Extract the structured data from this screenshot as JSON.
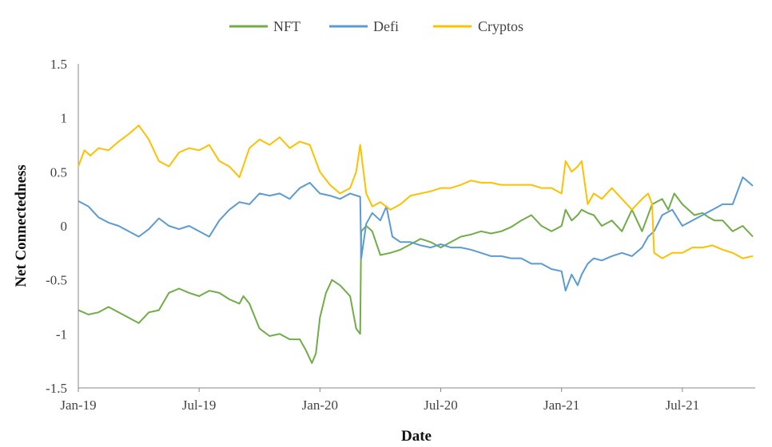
{
  "chart_data": {
    "type": "line",
    "title": "",
    "xlabel": "Date",
    "ylabel": "Net Connectedness",
    "ylim": [
      -1.5,
      1.5
    ],
    "y_ticks": [
      1.5,
      1,
      0.5,
      0,
      -0.5,
      -1,
      -1.5
    ],
    "y_tick_labels": [
      "1.5",
      "1",
      "0.5",
      "0",
      "-0.5",
      "-1",
      "-1.5"
    ],
    "x_range_months": [
      0,
      33.5
    ],
    "x_ticks": [
      0,
      6,
      12,
      18,
      24,
      30
    ],
    "x_tick_labels": [
      "Jan-19",
      "Jul-19",
      "Jan-20",
      "Jul-20",
      "Jan-21",
      "Jul-21"
    ],
    "grid": false,
    "legend_position": "top-center",
    "series": [
      {
        "name": "NFT",
        "color": "#70AD47",
        "x": [
          0,
          0.5,
          1,
          1.5,
          2,
          2.5,
          3,
          3.5,
          4,
          4.5,
          5,
          5.5,
          6,
          6.5,
          7,
          7.5,
          8,
          8.2,
          8.5,
          9,
          9.5,
          10,
          10.5,
          11,
          11.3,
          11.6,
          11.8,
          12,
          12.3,
          12.6,
          13,
          13.5,
          13.8,
          14,
          14.05,
          14.3,
          14.6,
          15,
          15.5,
          16,
          16.5,
          17,
          17.5,
          18,
          18.5,
          19,
          19.5,
          20,
          20.5,
          21,
          21.5,
          22,
          22.5,
          23,
          23.5,
          24,
          24.2,
          24.5,
          24.8,
          25,
          25.3,
          25.6,
          26,
          26.5,
          27,
          27.5,
          28,
          28.5,
          29,
          29.3,
          29.6,
          30,
          30.3,
          30.6,
          31,
          31.3,
          31.6,
          32,
          32.5,
          33,
          33.5
        ],
        "values": [
          -0.78,
          -0.82,
          -0.8,
          -0.75,
          -0.8,
          -0.85,
          -0.9,
          -0.8,
          -0.78,
          -0.62,
          -0.58,
          -0.62,
          -0.65,
          -0.6,
          -0.62,
          -0.68,
          -0.72,
          -0.65,
          -0.72,
          -0.95,
          -1.02,
          -1.0,
          -1.05,
          -1.05,
          -1.15,
          -1.27,
          -1.18,
          -0.85,
          -0.62,
          -0.5,
          -0.55,
          -0.65,
          -0.95,
          -1.0,
          -0.05,
          0.0,
          -0.05,
          -0.27,
          -0.25,
          -0.22,
          -0.17,
          -0.12,
          -0.15,
          -0.2,
          -0.15,
          -0.1,
          -0.08,
          -0.05,
          -0.07,
          -0.05,
          -0.01,
          0.05,
          0.1,
          0.0,
          -0.05,
          0.0,
          0.15,
          0.05,
          0.1,
          0.15,
          0.12,
          0.1,
          0.0,
          0.05,
          -0.05,
          0.15,
          -0.05,
          0.2,
          0.25,
          0.15,
          0.3,
          0.2,
          0.15,
          0.1,
          0.12,
          0.08,
          0.05,
          0.05,
          -0.05,
          0.0,
          -0.1
        ]
      },
      {
        "name": "Defi",
        "color": "#5B9BD5",
        "x": [
          0,
          0.5,
          1,
          1.5,
          2,
          2.5,
          3,
          3.5,
          4,
          4.5,
          5,
          5.5,
          6,
          6.5,
          7,
          7.5,
          8,
          8.5,
          9,
          9.5,
          10,
          10.5,
          11,
          11.5,
          12,
          12.5,
          13,
          13.5,
          14,
          14.05,
          14.3,
          14.6,
          15,
          15.3,
          15.6,
          16,
          16.5,
          17,
          17.5,
          18,
          18.5,
          19,
          19.5,
          20,
          20.5,
          21,
          21.5,
          22,
          22.5,
          23,
          23.5,
          24,
          24.2,
          24.5,
          24.8,
          25,
          25.3,
          25.6,
          26,
          26.5,
          27,
          27.5,
          28,
          28.3,
          28.6,
          29,
          29.5,
          30,
          30.5,
          31,
          31.5,
          32,
          32.5,
          33,
          33.2,
          33.5
        ],
        "values": [
          0.23,
          0.18,
          0.08,
          0.03,
          0.0,
          -0.05,
          -0.1,
          -0.03,
          0.07,
          0.0,
          -0.03,
          0.0,
          -0.05,
          -0.1,
          0.05,
          0.15,
          0.22,
          0.2,
          0.3,
          0.28,
          0.3,
          0.25,
          0.35,
          0.4,
          0.3,
          0.28,
          0.25,
          0.3,
          0.27,
          -0.3,
          0.02,
          0.12,
          0.05,
          0.18,
          -0.1,
          -0.15,
          -0.15,
          -0.18,
          -0.2,
          -0.17,
          -0.2,
          -0.2,
          -0.22,
          -0.25,
          -0.28,
          -0.28,
          -0.3,
          -0.3,
          -0.35,
          -0.35,
          -0.4,
          -0.42,
          -0.6,
          -0.45,
          -0.55,
          -0.45,
          -0.35,
          -0.3,
          -0.32,
          -0.28,
          -0.25,
          -0.28,
          -0.2,
          -0.1,
          -0.05,
          0.1,
          0.15,
          0.0,
          0.05,
          0.1,
          0.15,
          0.2,
          0.2,
          0.45,
          0.42,
          0.37
        ]
      },
      {
        "name": "Cryptos",
        "color": "#FFC000",
        "x": [
          0,
          0.3,
          0.6,
          1,
          1.5,
          2,
          2.5,
          3,
          3.5,
          4,
          4.5,
          5,
          5.5,
          6,
          6.5,
          7,
          7.5,
          8,
          8.5,
          9,
          9.5,
          10,
          10.5,
          11,
          11.5,
          12,
          12.5,
          13,
          13.5,
          13.8,
          14,
          14.1,
          14.3,
          14.6,
          15,
          15.5,
          16,
          16.5,
          17,
          17.5,
          18,
          18.5,
          19,
          19.5,
          20,
          20.5,
          21,
          21.5,
          22,
          22.5,
          23,
          23.5,
          24,
          24.2,
          24.5,
          24.8,
          25,
          25.3,
          25.6,
          26,
          26.5,
          27,
          27.5,
          28,
          28.3,
          28.5,
          28.6,
          29,
          29.5,
          30,
          30.5,
          31,
          31.5,
          32,
          32.5,
          33,
          33.5
        ],
        "values": [
          0.55,
          0.7,
          0.65,
          0.72,
          0.7,
          0.78,
          0.85,
          0.93,
          0.8,
          0.6,
          0.55,
          0.68,
          0.72,
          0.7,
          0.75,
          0.6,
          0.55,
          0.45,
          0.72,
          0.8,
          0.75,
          0.82,
          0.72,
          0.78,
          0.75,
          0.5,
          0.38,
          0.3,
          0.35,
          0.5,
          0.75,
          0.6,
          0.3,
          0.18,
          0.22,
          0.15,
          0.2,
          0.28,
          0.3,
          0.32,
          0.35,
          0.35,
          0.38,
          0.42,
          0.4,
          0.4,
          0.38,
          0.38,
          0.38,
          0.38,
          0.35,
          0.35,
          0.3,
          0.6,
          0.5,
          0.55,
          0.6,
          0.2,
          0.3,
          0.25,
          0.35,
          0.25,
          0.15,
          0.25,
          0.3,
          0.2,
          -0.25,
          -0.3,
          -0.25,
          -0.25,
          -0.2,
          -0.2,
          -0.18,
          -0.22,
          -0.25,
          -0.3,
          -0.28
        ]
      }
    ]
  }
}
